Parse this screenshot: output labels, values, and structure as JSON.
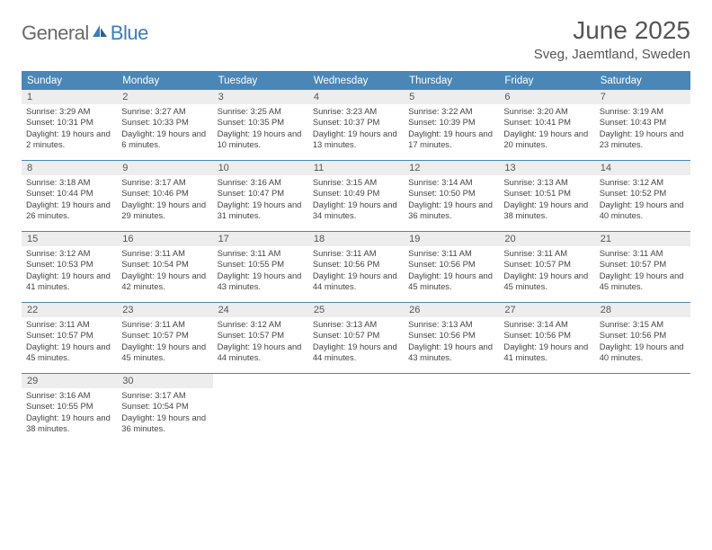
{
  "brand": {
    "general": "General",
    "blue": "Blue"
  },
  "title": "June 2025",
  "location": "Sveg, Jaemtland, Sweden",
  "colors": {
    "header_bg": "#4a86b6",
    "header_text": "#ffffff",
    "daynum_bg": "#ededed",
    "text": "#555555",
    "body_text": "#444444",
    "logo_gray": "#6a6a6a",
    "logo_blue": "#3b7bbf"
  },
  "days_of_week": [
    "Sunday",
    "Monday",
    "Tuesday",
    "Wednesday",
    "Thursday",
    "Friday",
    "Saturday"
  ],
  "weeks": [
    [
      {
        "n": "1",
        "sr": "Sunrise: 3:29 AM",
        "ss": "Sunset: 10:31 PM",
        "dl": "Daylight: 19 hours and 2 minutes."
      },
      {
        "n": "2",
        "sr": "Sunrise: 3:27 AM",
        "ss": "Sunset: 10:33 PM",
        "dl": "Daylight: 19 hours and 6 minutes."
      },
      {
        "n": "3",
        "sr": "Sunrise: 3:25 AM",
        "ss": "Sunset: 10:35 PM",
        "dl": "Daylight: 19 hours and 10 minutes."
      },
      {
        "n": "4",
        "sr": "Sunrise: 3:23 AM",
        "ss": "Sunset: 10:37 PM",
        "dl": "Daylight: 19 hours and 13 minutes."
      },
      {
        "n": "5",
        "sr": "Sunrise: 3:22 AM",
        "ss": "Sunset: 10:39 PM",
        "dl": "Daylight: 19 hours and 17 minutes."
      },
      {
        "n": "6",
        "sr": "Sunrise: 3:20 AM",
        "ss": "Sunset: 10:41 PM",
        "dl": "Daylight: 19 hours and 20 minutes."
      },
      {
        "n": "7",
        "sr": "Sunrise: 3:19 AM",
        "ss": "Sunset: 10:43 PM",
        "dl": "Daylight: 19 hours and 23 minutes."
      }
    ],
    [
      {
        "n": "8",
        "sr": "Sunrise: 3:18 AM",
        "ss": "Sunset: 10:44 PM",
        "dl": "Daylight: 19 hours and 26 minutes."
      },
      {
        "n": "9",
        "sr": "Sunrise: 3:17 AM",
        "ss": "Sunset: 10:46 PM",
        "dl": "Daylight: 19 hours and 29 minutes."
      },
      {
        "n": "10",
        "sr": "Sunrise: 3:16 AM",
        "ss": "Sunset: 10:47 PM",
        "dl": "Daylight: 19 hours and 31 minutes."
      },
      {
        "n": "11",
        "sr": "Sunrise: 3:15 AM",
        "ss": "Sunset: 10:49 PM",
        "dl": "Daylight: 19 hours and 34 minutes."
      },
      {
        "n": "12",
        "sr": "Sunrise: 3:14 AM",
        "ss": "Sunset: 10:50 PM",
        "dl": "Daylight: 19 hours and 36 minutes."
      },
      {
        "n": "13",
        "sr": "Sunrise: 3:13 AM",
        "ss": "Sunset: 10:51 PM",
        "dl": "Daylight: 19 hours and 38 minutes."
      },
      {
        "n": "14",
        "sr": "Sunrise: 3:12 AM",
        "ss": "Sunset: 10:52 PM",
        "dl": "Daylight: 19 hours and 40 minutes."
      }
    ],
    [
      {
        "n": "15",
        "sr": "Sunrise: 3:12 AM",
        "ss": "Sunset: 10:53 PM",
        "dl": "Daylight: 19 hours and 41 minutes."
      },
      {
        "n": "16",
        "sr": "Sunrise: 3:11 AM",
        "ss": "Sunset: 10:54 PM",
        "dl": "Daylight: 19 hours and 42 minutes."
      },
      {
        "n": "17",
        "sr": "Sunrise: 3:11 AM",
        "ss": "Sunset: 10:55 PM",
        "dl": "Daylight: 19 hours and 43 minutes."
      },
      {
        "n": "18",
        "sr": "Sunrise: 3:11 AM",
        "ss": "Sunset: 10:56 PM",
        "dl": "Daylight: 19 hours and 44 minutes."
      },
      {
        "n": "19",
        "sr": "Sunrise: 3:11 AM",
        "ss": "Sunset: 10:56 PM",
        "dl": "Daylight: 19 hours and 45 minutes."
      },
      {
        "n": "20",
        "sr": "Sunrise: 3:11 AM",
        "ss": "Sunset: 10:57 PM",
        "dl": "Daylight: 19 hours and 45 minutes."
      },
      {
        "n": "21",
        "sr": "Sunrise: 3:11 AM",
        "ss": "Sunset: 10:57 PM",
        "dl": "Daylight: 19 hours and 45 minutes."
      }
    ],
    [
      {
        "n": "22",
        "sr": "Sunrise: 3:11 AM",
        "ss": "Sunset: 10:57 PM",
        "dl": "Daylight: 19 hours and 45 minutes."
      },
      {
        "n": "23",
        "sr": "Sunrise: 3:11 AM",
        "ss": "Sunset: 10:57 PM",
        "dl": "Daylight: 19 hours and 45 minutes."
      },
      {
        "n": "24",
        "sr": "Sunrise: 3:12 AM",
        "ss": "Sunset: 10:57 PM",
        "dl": "Daylight: 19 hours and 44 minutes."
      },
      {
        "n": "25",
        "sr": "Sunrise: 3:13 AM",
        "ss": "Sunset: 10:57 PM",
        "dl": "Daylight: 19 hours and 44 minutes."
      },
      {
        "n": "26",
        "sr": "Sunrise: 3:13 AM",
        "ss": "Sunset: 10:56 PM",
        "dl": "Daylight: 19 hours and 43 minutes."
      },
      {
        "n": "27",
        "sr": "Sunrise: 3:14 AM",
        "ss": "Sunset: 10:56 PM",
        "dl": "Daylight: 19 hours and 41 minutes."
      },
      {
        "n": "28",
        "sr": "Sunrise: 3:15 AM",
        "ss": "Sunset: 10:56 PM",
        "dl": "Daylight: 19 hours and 40 minutes."
      }
    ],
    [
      {
        "n": "29",
        "sr": "Sunrise: 3:16 AM",
        "ss": "Sunset: 10:55 PM",
        "dl": "Daylight: 19 hours and 38 minutes."
      },
      {
        "n": "30",
        "sr": "Sunrise: 3:17 AM",
        "ss": "Sunset: 10:54 PM",
        "dl": "Daylight: 19 hours and 36 minutes."
      },
      {
        "empty": true
      },
      {
        "empty": true
      },
      {
        "empty": true
      },
      {
        "empty": true
      },
      {
        "empty": true
      }
    ]
  ]
}
